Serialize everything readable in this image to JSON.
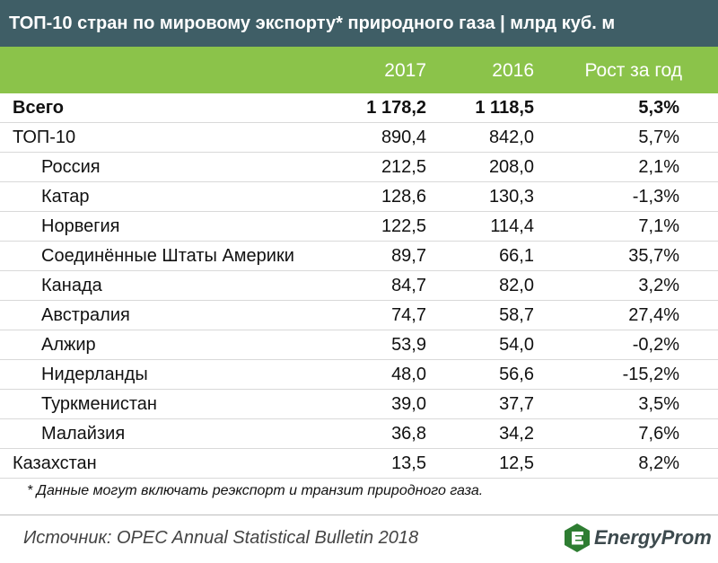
{
  "title": "ТОП-10 стран по мировому экспорту* природного газа | млрд куб. м",
  "header": {
    "col_2017": "2017",
    "col_2016": "2016",
    "col_growth": "Рост за год"
  },
  "rows": [
    {
      "name": "Всего",
      "v2017": "1 178,2",
      "v2016": "1 118,5",
      "growth": "5,3%"
    },
    {
      "name": "ТОП-10",
      "v2017": "890,4",
      "v2016": "842,0",
      "growth": "5,7%"
    },
    {
      "name": "Россия",
      "v2017": "212,5",
      "v2016": "208,0",
      "growth": "2,1%"
    },
    {
      "name": "Катар",
      "v2017": "128,6",
      "v2016": "130,3",
      "growth": "-1,3%"
    },
    {
      "name": "Норвегия",
      "v2017": "122,5",
      "v2016": "114,4",
      "growth": "7,1%"
    },
    {
      "name": "Соединённые Штаты Америки",
      "v2017": "89,7",
      "v2016": "66,1",
      "growth": "35,7%"
    },
    {
      "name": "Канада",
      "v2017": "84,7",
      "v2016": "82,0",
      "growth": "3,2%"
    },
    {
      "name": "Австралия",
      "v2017": "74,7",
      "v2016": "58,7",
      "growth": "27,4%"
    },
    {
      "name": "Алжир",
      "v2017": "53,9",
      "v2016": "54,0",
      "growth": "-0,2%"
    },
    {
      "name": "Нидерланды",
      "v2017": "48,0",
      "v2016": "56,6",
      "growth": "-15,2%"
    },
    {
      "name": "Туркменистан",
      "v2017": "39,0",
      "v2016": "37,7",
      "growth": "3,5%"
    },
    {
      "name": "Малайзия",
      "v2017": "36,8",
      "v2016": "34,2",
      "growth": "7,6%"
    },
    {
      "name": "Казахстан",
      "v2017": "13,5",
      "v2016": "12,5",
      "growth": "8,2%"
    }
  ],
  "footnote": "* Данные могут включать реэкспорт и транзит природного газа.",
  "source": "Источник: OPEC Annual Statistical Bulletin 2018",
  "logo": {
    "text": "EnergyProm",
    "icon": "energyprom-logo-icon",
    "color": "#2e7d32"
  },
  "colors": {
    "title_bg": "#3f5e66",
    "header_bg": "#8bc34a"
  }
}
